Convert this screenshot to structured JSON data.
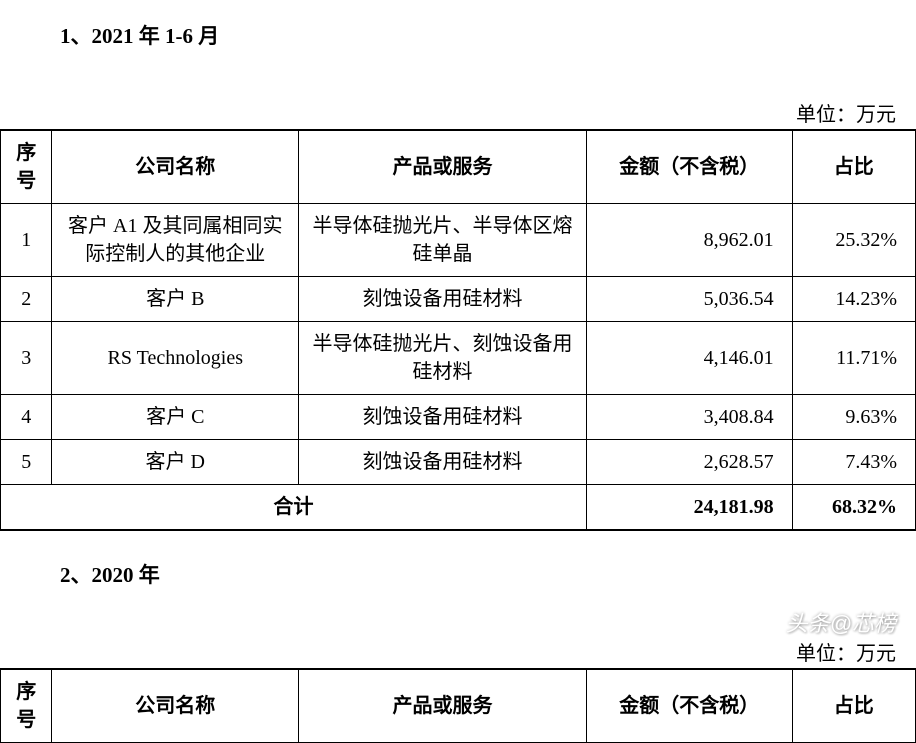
{
  "section1": {
    "title": "1、2021 年 1-6 月",
    "unit": "单位：万元",
    "headers": {
      "seq": "序号",
      "company": "公司名称",
      "product": "产品或服务",
      "amount": "金额（不含税）",
      "ratio": "占比"
    },
    "rows": [
      {
        "seq": "1",
        "company": "客户 A1 及其同属相同实际控制人的其他企业",
        "product": "半导体硅抛光片、半导体区熔硅单晶",
        "amount": "8,962.01",
        "ratio": "25.32%"
      },
      {
        "seq": "2",
        "company": "客户 B",
        "product": "刻蚀设备用硅材料",
        "amount": "5,036.54",
        "ratio": "14.23%"
      },
      {
        "seq": "3",
        "company": "RS Technologies",
        "product": "半导体硅抛光片、刻蚀设备用硅材料",
        "amount": "4,146.01",
        "ratio": "11.71%"
      },
      {
        "seq": "4",
        "company": "客户 C",
        "product": "刻蚀设备用硅材料",
        "amount": "3,408.84",
        "ratio": "9.63%"
      },
      {
        "seq": "5",
        "company": "客户 D",
        "product": "刻蚀设备用硅材料",
        "amount": "2,628.57",
        "ratio": "7.43%"
      }
    ],
    "total": {
      "label": "合计",
      "amount": "24,181.98",
      "ratio": "68.32%"
    }
  },
  "section2": {
    "title": "2、2020 年",
    "unit": "单位：万元",
    "headers": {
      "seq": "序号",
      "company": "公司名称",
      "product": "产品或服务",
      "amount": "金额（不含税）",
      "ratio": "占比"
    }
  },
  "watermark": "头条@芯榜"
}
